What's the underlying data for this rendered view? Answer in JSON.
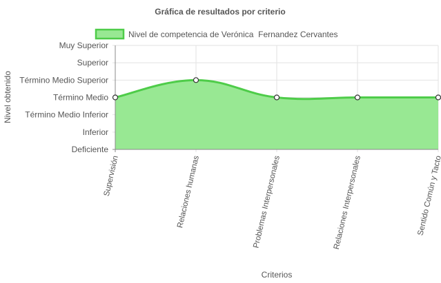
{
  "chart_data": {
    "type": "area",
    "title": "Gráfica de resultados por criterio",
    "xlabel": "Criterios",
    "ylabel": "Nivel obtenido",
    "y_levels": [
      "Deficiente",
      "Inferior",
      "Término Medio Inferior",
      "Término Medio",
      "Término Medio Superior",
      "Superior",
      "Muy Superior"
    ],
    "ylim": [
      0,
      6
    ],
    "categories": [
      "Supervisión",
      "Relaciones humanas",
      "Problemas Interpersonales",
      "Relaciones Interpersonales",
      "Sentido Común y Tacto"
    ],
    "series": [
      {
        "name": "Nivel de competencia de Verónica  Fernandez Cervantes",
        "values": [
          3,
          4,
          3,
          3,
          3
        ]
      }
    ],
    "grid": true,
    "legend": "top",
    "colors": {
      "fill": "#98e893",
      "line": "#4ecc49",
      "grid": "#e2e2e2",
      "axis": "#888888",
      "text": "#555555"
    }
  }
}
